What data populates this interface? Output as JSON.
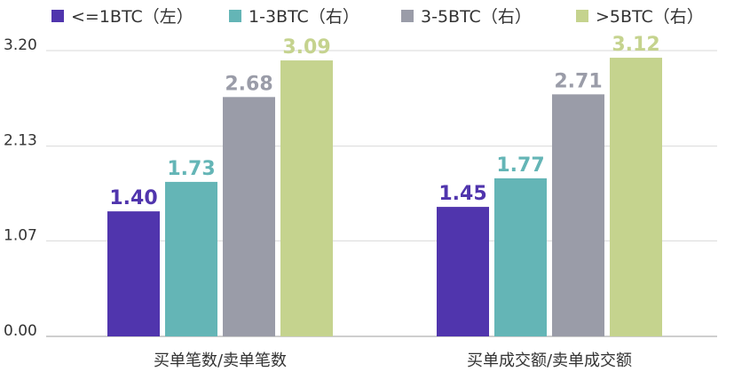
{
  "chart_data": {
    "type": "bar",
    "categories": [
      "买单笔数/卖单笔数",
      "买单成交额/卖单成交额"
    ],
    "series": [
      {
        "name": "<=1BTC（左）",
        "values": [
          1.4,
          1.45
        ],
        "color": "#5035ad"
      },
      {
        "name": "1-3BTC（右）",
        "values": [
          1.73,
          1.77
        ],
        "color": "#64b5b6"
      },
      {
        "name": "3-5BTC（右）",
        "values": [
          2.68,
          2.71
        ],
        "color": "#9a9ca8"
      },
      {
        "name": ">5BTC（右）",
        "values": [
          3.09,
          3.12
        ],
        "color": "#c5d38e"
      }
    ],
    "value_labels": [
      [
        "1.40",
        "1.45"
      ],
      [
        "1.73",
        "1.77"
      ],
      [
        "2.68",
        "2.71"
      ],
      [
        "3.09",
        "3.12"
      ]
    ],
    "yticks": [
      "0.00",
      "1.07",
      "2.13",
      "3.20"
    ],
    "ylim": [
      0,
      3.2
    ],
    "grid": true,
    "legend_position": "top"
  }
}
